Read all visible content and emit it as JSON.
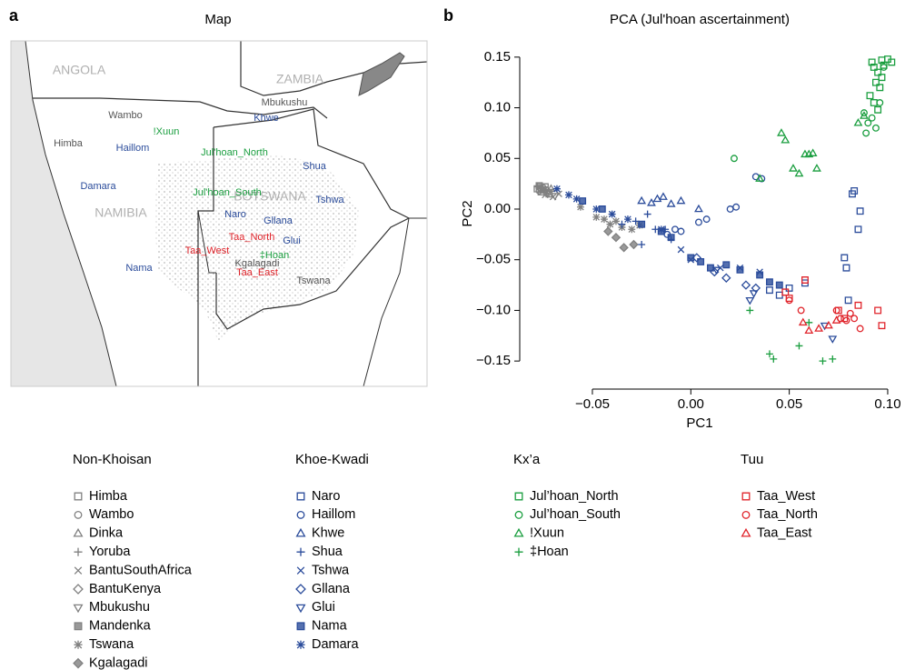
{
  "panel_labels": [
    "a",
    "b"
  ],
  "map": {
    "title": "Map",
    "countries": [
      "ANGOLA",
      "ZAMBIA",
      "NAMIBIA",
      "BOTSWANA"
    ],
    "country_color": "#b0b0b0",
    "places": [
      {
        "label": "Mbukushu",
        "color": "#555555"
      },
      {
        "label": "Wambo",
        "color": "#555555"
      },
      {
        "label": "!Xuun",
        "color": "#1a9e3f"
      },
      {
        "label": "Himba",
        "color": "#555555"
      },
      {
        "label": "Haillom",
        "color": "#2b4c9b"
      },
      {
        "label": "Khwe",
        "color": "#2b4c9b"
      },
      {
        "label": "Jul'hoan_North",
        "color": "#1a9e3f"
      },
      {
        "label": "Shua",
        "color": "#2b4c9b"
      },
      {
        "label": "Damara",
        "color": "#2b4c9b"
      },
      {
        "label": "Jul'hoan_South",
        "color": "#1a9e3f"
      },
      {
        "label": "Tshwa",
        "color": "#2b4c9b"
      },
      {
        "label": "Naro",
        "color": "#2b4c9b"
      },
      {
        "label": "Gllana",
        "color": "#2b4c9b"
      },
      {
        "label": "Taa_North",
        "color": "#e0242b"
      },
      {
        "label": "Glui",
        "color": "#2b4c9b"
      },
      {
        "label": "Taa_West",
        "color": "#e0242b"
      },
      {
        "label": "‡Hoan",
        "color": "#1a9e3f"
      },
      {
        "label": "Kgalagadi",
        "color": "#555555"
      },
      {
        "label": "Taa_East",
        "color": "#e0242b"
      },
      {
        "label": "Nama",
        "color": "#2b4c9b"
      },
      {
        "label": "Tswana",
        "color": "#555555"
      }
    ]
  },
  "chart_data": {
    "type": "scatter",
    "title": "PCA (Jul'hoan ascertainment)",
    "x_label": "PC1",
    "y_label": "PC2",
    "xlim": [
      -0.0869,
      0.1074
    ],
    "ylim": [
      -0.175,
      0.166
    ],
    "xticks": [
      {
        "value": -0.05,
        "label": "−0.05"
      },
      {
        "value": 0,
        "label": "0.00"
      },
      0.05,
      {
        "value": 0.1,
        "label": "0.10"
      }
    ],
    "yticks": [
      {
        "value": -0.15,
        "label": "−0.15"
      },
      {
        "value": -0.1,
        "label": "−0.10"
      },
      {
        "value": -0.05,
        "label": "−0.05"
      },
      {
        "value": 0,
        "label": "0.00"
      },
      0.05,
      {
        "value": 0.1,
        "label": "0.10"
      },
      0.15
    ],
    "groups": [
      {
        "title": "Non-Khoisan",
        "color": "#808080",
        "series": [
          {
            "name": "Himba",
            "marker": "square",
            "x": [
              -0.078,
              -0.076,
              -0.074,
              -0.072
            ],
            "y": [
              0.02,
              0.017,
              0.022,
              0.015
            ]
          },
          {
            "name": "Wambo",
            "marker": "circle",
            "x": [
              -0.077,
              -0.075,
              -0.073
            ],
            "y": [
              0.018,
              0.021,
              0.016
            ]
          },
          {
            "name": "Dinka",
            "marker": "triangle",
            "x": [
              -0.075,
              -0.071
            ],
            "y": [
              0.019,
              0.02
            ]
          },
          {
            "name": "Yoruba",
            "marker": "plus",
            "x": [
              -0.078,
              -0.076
            ],
            "y": [
              0.022,
              0.02
            ]
          },
          {
            "name": "BantuSouthAfrica",
            "marker": "cross",
            "x": [
              -0.074,
              -0.07,
              -0.067
            ],
            "y": [
              0.014,
              0.012,
              0.015
            ]
          },
          {
            "name": "BantuKenya",
            "marker": "diamond",
            "x": [
              -0.076,
              -0.073
            ],
            "y": [
              0.02,
              0.018
            ]
          },
          {
            "name": "Mbukushu",
            "marker": "triangle-down",
            "x": [
              -0.072,
              -0.069
            ],
            "y": [
              0.017,
              0.013
            ]
          },
          {
            "name": "Mandenka",
            "marker": "filled-square",
            "x": [
              -0.077,
              -0.075
            ],
            "y": [
              0.023,
              0.019
            ]
          },
          {
            "name": "Tswana",
            "marker": "asterisk",
            "x": [
              -0.056,
              -0.048,
              -0.044,
              -0.041,
              -0.038,
              -0.035,
              -0.03,
              -0.026
            ],
            "y": [
              0.002,
              -0.008,
              -0.01,
              -0.015,
              -0.012,
              -0.018,
              -0.02,
              -0.016
            ]
          },
          {
            "name": "Kgalagadi",
            "marker": "filled-diamond",
            "x": [
              -0.042,
              -0.038,
              -0.034,
              -0.029
            ],
            "y": [
              -0.022,
              -0.028,
              -0.038,
              -0.035
            ]
          }
        ]
      },
      {
        "title": "Khoe-Kwadi",
        "color": "#2b4c9b",
        "series": [
          {
            "name": "Naro",
            "marker": "square",
            "x": [
              0.04,
              0.045,
              0.05,
              0.058,
              0.082,
              0.083,
              0.086,
              0.085,
              0.078,
              0.079,
              0.08
            ],
            "y": [
              -0.08,
              -0.085,
              -0.078,
              -0.073,
              0.015,
              0.018,
              -0.002,
              -0.02,
              -0.048,
              -0.058,
              -0.09
            ]
          },
          {
            "name": "Haillom",
            "marker": "circle",
            "x": [
              -0.012,
              -0.008,
              -0.005,
              0.004,
              0.008,
              0.02,
              0.023,
              0.033,
              0.036
            ],
            "y": [
              -0.025,
              -0.02,
              -0.022,
              -0.013,
              -0.01,
              0.0,
              0.002,
              0.032,
              0.03
            ]
          },
          {
            "name": "Khwe",
            "marker": "triangle",
            "x": [
              -0.025,
              -0.02,
              -0.017,
              -0.014,
              -0.01,
              -0.005,
              0.004
            ],
            "y": [
              0.008,
              0.006,
              0.01,
              0.012,
              0.005,
              0.008,
              0.0
            ]
          },
          {
            "name": "Shua",
            "marker": "plus",
            "x": [
              -0.035,
              -0.028,
              -0.022,
              -0.018,
              -0.013,
              -0.01,
              -0.025
            ],
            "y": [
              -0.015,
              -0.012,
              -0.005,
              -0.02,
              -0.02,
              -0.03,
              -0.035
            ]
          },
          {
            "name": "Tshwa",
            "marker": "cross",
            "x": [
              -0.005,
              0.0,
              0.015,
              0.025,
              0.035
            ],
            "y": [
              -0.04,
              -0.05,
              -0.058,
              -0.058,
              -0.062
            ]
          },
          {
            "name": "Gllana",
            "marker": "diamond",
            "x": [
              0.003,
              0.012,
              0.018,
              0.028,
              0.033
            ],
            "y": [
              -0.048,
              -0.062,
              -0.068,
              -0.075,
              -0.078
            ]
          },
          {
            "name": "Glui",
            "marker": "triangle-down",
            "x": [
              0.013,
              0.03,
              0.032,
              0.068,
              0.072
            ],
            "y": [
              -0.06,
              -0.09,
              -0.083,
              -0.115,
              -0.128
            ]
          },
          {
            "name": "Nama",
            "marker": "filled-square",
            "x": [
              -0.055,
              -0.045,
              -0.025,
              -0.015,
              -0.01,
              0.0,
              0.005,
              0.01,
              0.018,
              0.025,
              0.035,
              0.04,
              0.045
            ],
            "y": [
              0.008,
              0.0,
              -0.015,
              -0.022,
              -0.028,
              -0.048,
              -0.052,
              -0.058,
              -0.055,
              -0.06,
              -0.065,
              -0.072,
              -0.075
            ]
          },
          {
            "name": "Damara",
            "marker": "asterisk",
            "x": [
              -0.068,
              -0.062,
              -0.058,
              -0.048,
              -0.04,
              -0.032,
              -0.015
            ],
            "y": [
              0.02,
              0.014,
              0.01,
              0.0,
              -0.005,
              -0.01,
              -0.02
            ]
          }
        ]
      },
      {
        "title": "Kx’a",
        "color": "#1a9e3f",
        "series": [
          {
            "name": "Jul’hoan_North",
            "marker": "square",
            "x": [
              0.092,
              0.093,
              0.095,
              0.097,
              0.098,
              0.1,
              0.102,
              0.094,
              0.096,
              0.091,
              0.093,
              0.095,
              0.097
            ],
            "y": [
              0.145,
              0.14,
              0.135,
              0.147,
              0.142,
              0.148,
              0.145,
              0.125,
              0.12,
              0.112,
              0.105,
              0.098,
              0.13
            ]
          },
          {
            "name": "Jul’hoan_South",
            "marker": "circle",
            "x": [
              0.022,
              0.089,
              0.09,
              0.092,
              0.094,
              0.096,
              0.098,
              0.088
            ],
            "y": [
              0.05,
              0.075,
              0.085,
              0.09,
              0.08,
              0.105,
              0.14,
              0.095
            ]
          },
          {
            "name": "!Xuun",
            "marker": "triangle",
            "x": [
              0.035,
              0.046,
              0.048,
              0.052,
              0.055,
              0.058,
              0.06,
              0.062,
              0.064,
              0.085,
              0.088
            ],
            "y": [
              0.03,
              0.075,
              0.068,
              0.04,
              0.035,
              0.054,
              0.054,
              0.055,
              0.04,
              0.085,
              0.092
            ]
          },
          {
            "name": "‡Hoan",
            "marker": "plus",
            "x": [
              0.03,
              0.04,
              0.042,
              0.055,
              0.06,
              0.067,
              0.072
            ],
            "y": [
              -0.1,
              -0.143,
              -0.148,
              -0.135,
              -0.112,
              -0.15,
              -0.148
            ]
          }
        ]
      },
      {
        "title": "Tuu",
        "color": "#e0242b",
        "series": [
          {
            "name": "Taa_West",
            "marker": "square",
            "x": [
              0.048,
              0.05,
              0.058,
              0.075,
              0.078,
              0.085,
              0.095,
              0.097
            ],
            "y": [
              -0.082,
              -0.088,
              -0.07,
              -0.1,
              -0.108,
              -0.095,
              -0.1,
              -0.115
            ]
          },
          {
            "name": "Taa_North",
            "marker": "circle",
            "x": [
              0.05,
              0.056,
              0.074,
              0.076,
              0.079,
              0.081,
              0.083,
              0.086
            ],
            "y": [
              -0.09,
              -0.1,
              -0.1,
              -0.108,
              -0.11,
              -0.103,
              -0.108,
              -0.118
            ]
          },
          {
            "name": "Taa_East",
            "marker": "triangle",
            "x": [
              0.057,
              0.06,
              0.065,
              0.07,
              0.074
            ],
            "y": [
              -0.112,
              -0.12,
              -0.118,
              -0.115,
              -0.11
            ]
          }
        ]
      }
    ]
  }
}
